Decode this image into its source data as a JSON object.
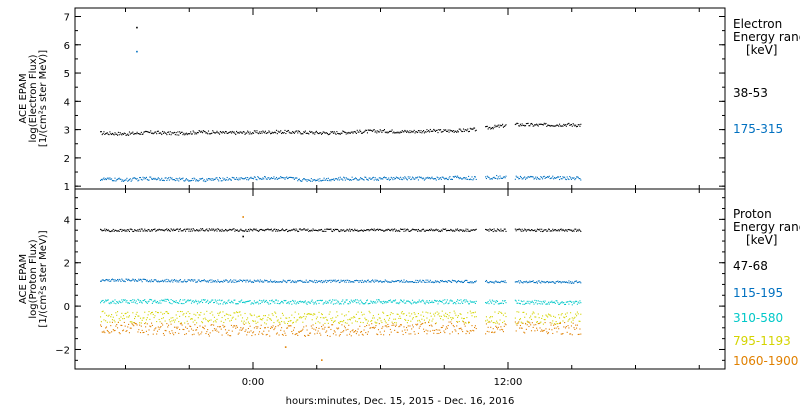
{
  "chart_data": {
    "type": "scatter",
    "xlabel": "hours:minutes, Dec. 15, 2015 - Dec. 16, 2016",
    "x_tick_labels": [
      "0:00",
      "12:00"
    ],
    "panels": [
      {
        "name": "electron",
        "ylabel_lines": [
          "ACE EPAM",
          "log(Electron Flux)",
          "[1/(cm²s ster MeV)]"
        ],
        "ylim": [
          0.9,
          7.3
        ],
        "y_ticks": [
          1,
          2,
          3,
          4,
          5,
          6,
          7
        ],
        "legend_title_lines": [
          "Electron",
          "Energy ranges",
          "[keV]"
        ],
        "series": [
          {
            "name": "38-53",
            "color": "#000000",
            "points": [
              [
                -7.2,
                2.88
              ],
              [
                -6.0,
                2.85
              ],
              [
                -4.8,
                2.9
              ],
              [
                -3.6,
                2.86
              ],
              [
                -2.4,
                2.92
              ],
              [
                -1.2,
                2.88
              ],
              [
                0.0,
                2.9
              ],
              [
                1.2,
                2.92
              ],
              [
                2.4,
                2.9
              ],
              [
                3.6,
                2.88
              ],
              [
                4.8,
                2.92
              ],
              [
                6.0,
                2.95
              ],
              [
                7.2,
                2.93
              ],
              [
                8.4,
                2.95
              ],
              [
                9.6,
                2.96
              ],
              [
                10.4,
                3.0
              ],
              [
                11.4,
                3.1
              ],
              [
                12.2,
                3.18
              ],
              [
                13.4,
                3.16
              ],
              [
                14.6,
                3.18
              ],
              [
                15.4,
                3.16
              ]
            ],
            "outliers": [
              [
                -5.5,
                6.6
              ]
            ]
          },
          {
            "name": "175-315",
            "color": "#0070c0",
            "points": [
              [
                -7.2,
                1.25
              ],
              [
                -6.0,
                1.22
              ],
              [
                -4.8,
                1.28
              ],
              [
                -3.6,
                1.24
              ],
              [
                -2.4,
                1.22
              ],
              [
                -1.2,
                1.26
              ],
              [
                0.0,
                1.28
              ],
              [
                1.2,
                1.3
              ],
              [
                2.4,
                1.22
              ],
              [
                3.6,
                1.25
              ],
              [
                4.8,
                1.27
              ],
              [
                6.0,
                1.26
              ],
              [
                7.2,
                1.28
              ],
              [
                8.4,
                1.27
              ],
              [
                9.6,
                1.3
              ],
              [
                10.4,
                1.28
              ],
              [
                11.4,
                1.32
              ],
              [
                12.2,
                1.3
              ],
              [
                13.4,
                1.3
              ],
              [
                14.6,
                1.29
              ],
              [
                15.4,
                1.28
              ]
            ],
            "outliers": [
              [
                -5.5,
                5.75
              ]
            ]
          }
        ]
      },
      {
        "name": "proton",
        "ylabel_lines": [
          "ACE EPAM",
          "log(Proton Flux)",
          "[1/(cm²s ster MeV)]"
        ],
        "ylim": [
          -2.9,
          5.4
        ],
        "y_ticks": [
          -2,
          0,
          2,
          4
        ],
        "legend_title_lines": [
          "Proton",
          "Energy ranges",
          "[keV]"
        ],
        "series": [
          {
            "name": "47-68",
            "color": "#000000",
            "points": [
              [
                -7.2,
                3.5
              ],
              [
                -4.8,
                3.5
              ],
              [
                -2.4,
                3.52
              ],
              [
                0.0,
                3.5
              ],
              [
                2.4,
                3.5
              ],
              [
                4.8,
                3.5
              ],
              [
                7.2,
                3.5
              ],
              [
                9.6,
                3.5
              ],
              [
                11.4,
                3.5
              ],
              [
                13.4,
                3.5
              ],
              [
                15.4,
                3.5
              ]
            ],
            "outliers": [
              [
                -0.5,
                3.2
              ]
            ]
          },
          {
            "name": "115-195",
            "color": "#0070c0",
            "points": [
              [
                -7.2,
                1.2
              ],
              [
                -4.8,
                1.18
              ],
              [
                -2.4,
                1.16
              ],
              [
                0.0,
                1.15
              ],
              [
                2.4,
                1.14
              ],
              [
                4.8,
                1.15
              ],
              [
                7.2,
                1.15
              ],
              [
                9.6,
                1.14
              ],
              [
                11.4,
                1.12
              ],
              [
                13.4,
                1.12
              ],
              [
                15.4,
                1.1
              ]
            ],
            "outliers": []
          },
          {
            "name": "310-580",
            "color": "#00c8c8",
            "points": [
              [
                -7.2,
                0.2
              ],
              [
                -4.8,
                0.22
              ],
              [
                -2.4,
                0.2
              ],
              [
                0.0,
                0.18
              ],
              [
                2.4,
                0.18
              ],
              [
                4.8,
                0.2
              ],
              [
                7.2,
                0.2
              ],
              [
                9.6,
                0.2
              ],
              [
                11.4,
                0.18
              ],
              [
                13.4,
                0.18
              ],
              [
                15.4,
                0.15
              ]
            ],
            "outliers": []
          },
          {
            "name": "795-1193",
            "color": "#d4d400",
            "points": [
              [
                -7.2,
                -0.5
              ],
              [
                -4.8,
                -0.52
              ],
              [
                -2.4,
                -0.5
              ],
              [
                0.0,
                -0.55
              ],
              [
                2.4,
                -0.55
              ],
              [
                4.8,
                -0.52
              ],
              [
                7.2,
                -0.5
              ],
              [
                9.6,
                -0.5
              ],
              [
                11.4,
                -0.52
              ],
              [
                13.4,
                -0.55
              ],
              [
                15.4,
                -0.55
              ]
            ],
            "outliers": []
          },
          {
            "name": "1060-1900",
            "color": "#e08000",
            "points": [
              [
                -7.2,
                -1.0
              ],
              [
                -4.8,
                -1.05
              ],
              [
                -2.4,
                -1.1
              ],
              [
                0.0,
                -1.1
              ],
              [
                2.4,
                -1.15
              ],
              [
                4.8,
                -1.1
              ],
              [
                7.2,
                -1.05
              ],
              [
                9.6,
                -1.0
              ],
              [
                11.4,
                -1.0
              ],
              [
                13.4,
                -1.0
              ],
              [
                15.4,
                -1.05
              ]
            ],
            "outliers": [
              [
                -0.5,
                4.1
              ],
              [
                1.5,
                -1.9
              ],
              [
                3.2,
                -2.5
              ]
            ]
          }
        ]
      }
    ]
  }
}
